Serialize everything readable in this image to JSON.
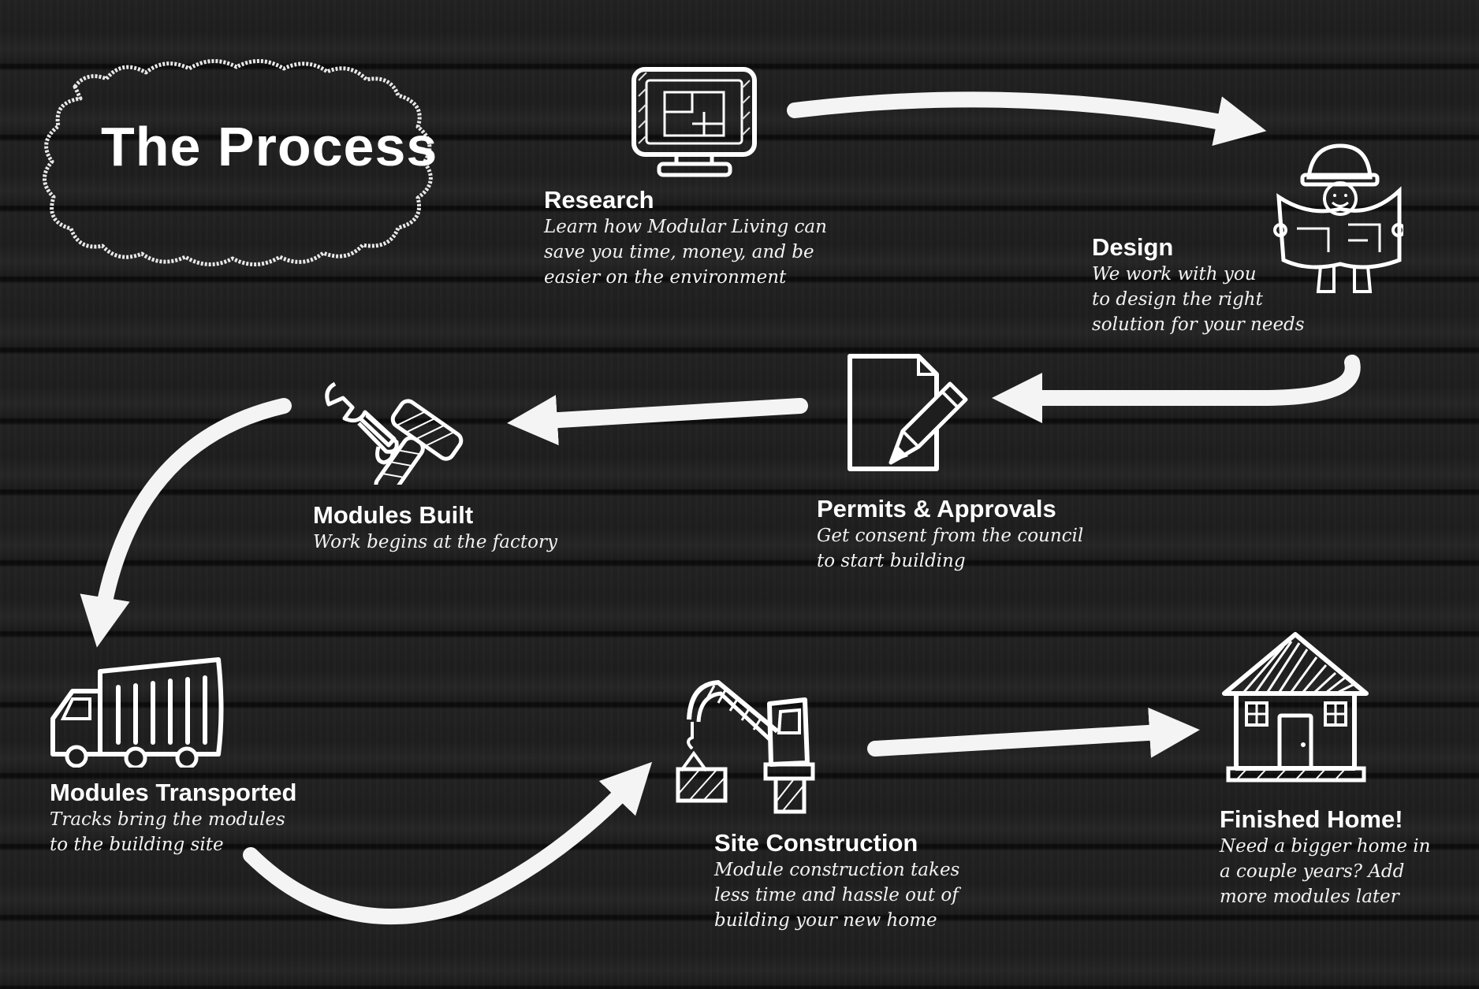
{
  "title": "The Process",
  "steps": [
    {
      "key": "research",
      "title": "Research",
      "description": "Learn how Modular Living can\nsave you time, money, and be\neasier on the environment",
      "icon": "computer-icon"
    },
    {
      "key": "design",
      "title": "Design",
      "description": "We work with you\nto design the right\nsolution for your needs",
      "icon": "architect-icon"
    },
    {
      "key": "permits",
      "title": "Permits & Approvals",
      "description": "Get consent from the council\nto start building",
      "icon": "document-pencil-icon"
    },
    {
      "key": "modules-built",
      "title": "Modules Built",
      "description": "Work begins at the factory",
      "icon": "tools-icon"
    },
    {
      "key": "modules-transported",
      "title": "Modules Transported",
      "description": "Tracks bring the modules\nto the building site",
      "icon": "truck-icon"
    },
    {
      "key": "site-construction",
      "title": "Site Construction",
      "description": "Module construction takes\nless time and hassle out of\nbuilding your new home",
      "icon": "crane-icon"
    },
    {
      "key": "finished-home",
      "title": "Finished Home!",
      "description": "Need a bigger home in\na couple years? Add\nmore modules later",
      "icon": "house-icon"
    }
  ],
  "colors": {
    "background": "#1b1b1b",
    "chalk": "#ffffff"
  }
}
